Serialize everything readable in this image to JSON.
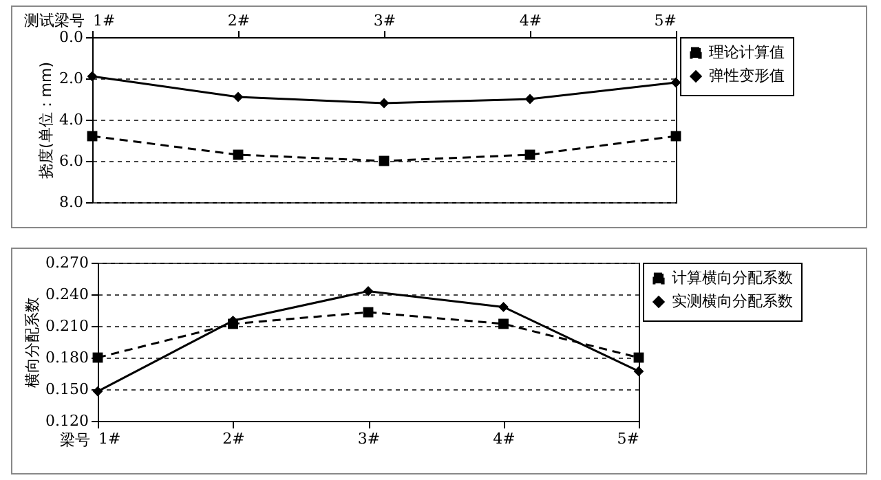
{
  "chart_data": [
    {
      "type": "line",
      "xlabel": "测试梁号",
      "ylabel": "挠度(单位：mm)",
      "categories": [
        "1#",
        "2#",
        "3#",
        "4#",
        "5#"
      ],
      "series": [
        {
          "name": "理论计算值",
          "color": "#000000",
          "marker": "square",
          "line_style": "dashed",
          "values": [
            4.8,
            5.7,
            6.0,
            5.7,
            4.8
          ]
        },
        {
          "name": "弹性变形值",
          "color": "#000000",
          "marker": "diamond",
          "line_style": "solid",
          "values": [
            1.9,
            2.9,
            3.2,
            3.0,
            2.2
          ]
        }
      ],
      "ylim": [
        8,
        0
      ],
      "yticks": [
        {
          "value": 0,
          "label": "0.0"
        },
        {
          "value": 2,
          "label": "2.0"
        },
        {
          "value": 4,
          "label": "4.0"
        },
        {
          "value": 6,
          "label": "6.0"
        },
        {
          "value": 8,
          "label": "8.0"
        }
      ],
      "grid": "y",
      "legend": "right"
    },
    {
      "type": "line",
      "xlabel": "梁号",
      "ylabel": "横向分配系数",
      "categories": [
        "1#",
        "2#",
        "3#",
        "4#",
        "5#"
      ],
      "series": [
        {
          "name": "计算横向分配系数",
          "color": "#000000",
          "marker": "square",
          "line_style": "dashed",
          "values": [
            0.18,
            0.212,
            0.223,
            0.212,
            0.18
          ]
        },
        {
          "name": "实测横向分配系数",
          "color": "#000000",
          "marker": "diamond",
          "line_style": "solid",
          "values": [
            0.148,
            0.215,
            0.243,
            0.228,
            0.167
          ]
        }
      ],
      "ylim": [
        0.12,
        0.27
      ],
      "yticks": [
        {
          "value": 0.12,
          "label": "0.120"
        },
        {
          "value": 0.15,
          "label": "0.150"
        },
        {
          "value": 0.18,
          "label": "0.180"
        },
        {
          "value": 0.21,
          "label": "0.210"
        },
        {
          "value": 0.24,
          "label": "0.240"
        },
        {
          "value": 0.27,
          "label": "0.270"
        }
      ],
      "grid": "y",
      "legend": "right"
    }
  ]
}
